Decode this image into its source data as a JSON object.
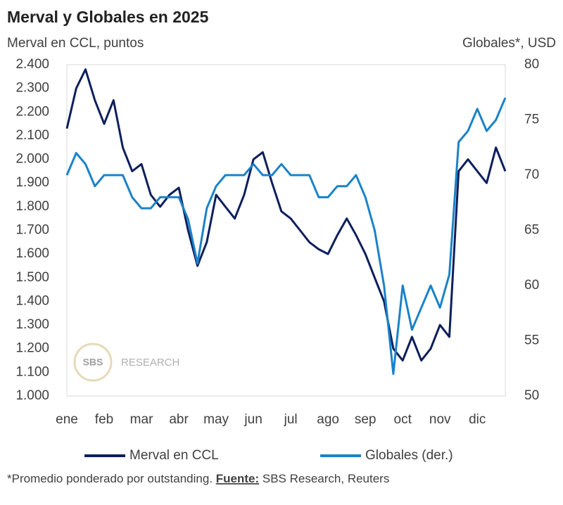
{
  "chart_data": {
    "type": "line",
    "title": "Merval y Globales en 2025",
    "y_label": "Merval en CCL, puntos",
    "y2_label": "Globales*, USD",
    "categories": [
      "ene",
      null,
      null,
      null,
      "feb",
      null,
      null,
      null,
      "mar",
      null,
      null,
      null,
      "abr",
      null,
      null,
      null,
      "may",
      null,
      null,
      null,
      "jun",
      null,
      null,
      null,
      "jul",
      null,
      null,
      null,
      "ago",
      null,
      null,
      null,
      "sep",
      null,
      null,
      null,
      "oct",
      null,
      null,
      null,
      "nov",
      null,
      null,
      null,
      "dic",
      null,
      null,
      null
    ],
    "series": [
      {
        "name": "Merval en CCL",
        "color": "#0d1f5c",
        "values": [
          2130,
          2300,
          2380,
          2250,
          2150,
          2250,
          2050,
          1950,
          1980,
          1850,
          1800,
          1850,
          1880,
          1700,
          1550,
          1650,
          1850,
          1800,
          1750,
          1850,
          2000,
          2030,
          1900,
          1780,
          1750,
          1700,
          1650,
          1620,
          1600,
          1680,
          1750,
          1680,
          1600,
          1500,
          1400,
          1200,
          1150,
          1250,
          1150,
          1200,
          1300,
          1250,
          1950,
          2000,
          1950,
          1900,
          2050,
          1950
        ]
      },
      {
        "name": "Globales (der.)",
        "color": "#1a82c9",
        "axis": "y2",
        "values": [
          70,
          72,
          71,
          69,
          70,
          70,
          70,
          68,
          67,
          67,
          68,
          68,
          68,
          66,
          62,
          67,
          69,
          70,
          70,
          70,
          71,
          70,
          70,
          71,
          70,
          70,
          70,
          68,
          68,
          69,
          69,
          70,
          68,
          65,
          60,
          52,
          60,
          56,
          58,
          60,
          58,
          61,
          73,
          74,
          76,
          74,
          75,
          77
        ]
      }
    ],
    "ylim": [
      1000,
      2400
    ],
    "yticks": [
      {
        "value": 1000,
        "label": "1.000"
      },
      {
        "value": 1100,
        "label": "1.100"
      },
      {
        "value": 1200,
        "label": "1.200"
      },
      {
        "value": 1300,
        "label": "1.300"
      },
      {
        "value": 1400,
        "label": "1.400"
      },
      {
        "value": 1500,
        "label": "1.500"
      },
      {
        "value": 1600,
        "label": "1.600"
      },
      {
        "value": 1700,
        "label": "1.700"
      },
      {
        "value": 1800,
        "label": "1.800"
      },
      {
        "value": 1900,
        "label": "1.900"
      },
      {
        "value": 2000,
        "label": "2.000"
      },
      {
        "value": 2100,
        "label": "2.100"
      },
      {
        "value": 2200,
        "label": "2.200"
      },
      {
        "value": 2300,
        "label": "2.300"
      },
      {
        "value": 2400,
        "label": "2.400"
      }
    ],
    "y2lim": [
      50,
      80
    ],
    "y2ticks": [
      50,
      55,
      60,
      65,
      70,
      75,
      80
    ],
    "grid": false,
    "legend": "bottom",
    "watermark": {
      "logo": "SBS",
      "text": "RESEARCH"
    },
    "note": {
      "text": "*Promedio ponderado por outstanding. ",
      "source_label": "Fuente:",
      "source": " SBS Research, Reuters"
    }
  }
}
